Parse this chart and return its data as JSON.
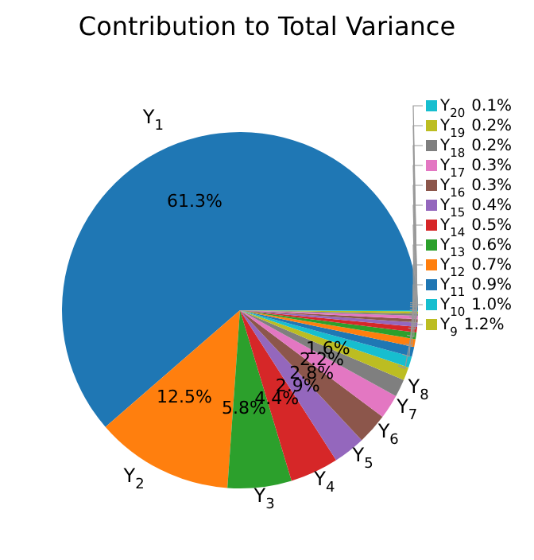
{
  "chart_data": {
    "type": "pie",
    "title": "Contribution to Total Variance",
    "categories": [
      "Y$_{1}$",
      "Y$_{2}$",
      "Y$_{3}$",
      "Y$_{4}$",
      "Y$_{5}$",
      "Y$_{6}$",
      "Y$_{7}$",
      "Y$_{8}$",
      "Y$_{9}$",
      "Y$_{10}$",
      "Y$_{11}$",
      "Y$_{12}$",
      "Y$_{13}$",
      "Y$_{14}$",
      "Y$_{15}$",
      "Y$_{16}$",
      "Y$_{17}$",
      "Y$_{18}$",
      "Y$_{19}$",
      "Y$_{20}$"
    ],
    "values": [
      61.3,
      12.5,
      5.8,
      4.4,
      2.9,
      2.8,
      2.2,
      1.6,
      1.2,
      1.0,
      0.9,
      0.7,
      0.6,
      0.5,
      0.4,
      0.3,
      0.3,
      0.2,
      0.2,
      0.1
    ],
    "value_labels": [
      "61.3%",
      "12.5%",
      "5.8%",
      "4.4%",
      "2.9%",
      "2.8%",
      "2.2%",
      "1.6%",
      "1.2%",
      "1.0%",
      "0.9%",
      "0.7%",
      "0.6%",
      "0.5%",
      "0.4%",
      "0.3%",
      "0.3%",
      "0.2%",
      "0.2%",
      "0.1%"
    ],
    "colors": [
      "#1f77b4",
      "#ff7f0e",
      "#2ca02c",
      "#d62728",
      "#9467bd",
      "#8c564b",
      "#e377c2",
      "#7f7f7f",
      "#bcbd22",
      "#17becf",
      "#1f77b4",
      "#ff7f0e",
      "#2ca02c",
      "#d62728",
      "#9467bd",
      "#8c564b",
      "#e377c2",
      "#7f7f7f",
      "#bcbd22",
      "#17becf"
    ],
    "legend": "right"
  }
}
